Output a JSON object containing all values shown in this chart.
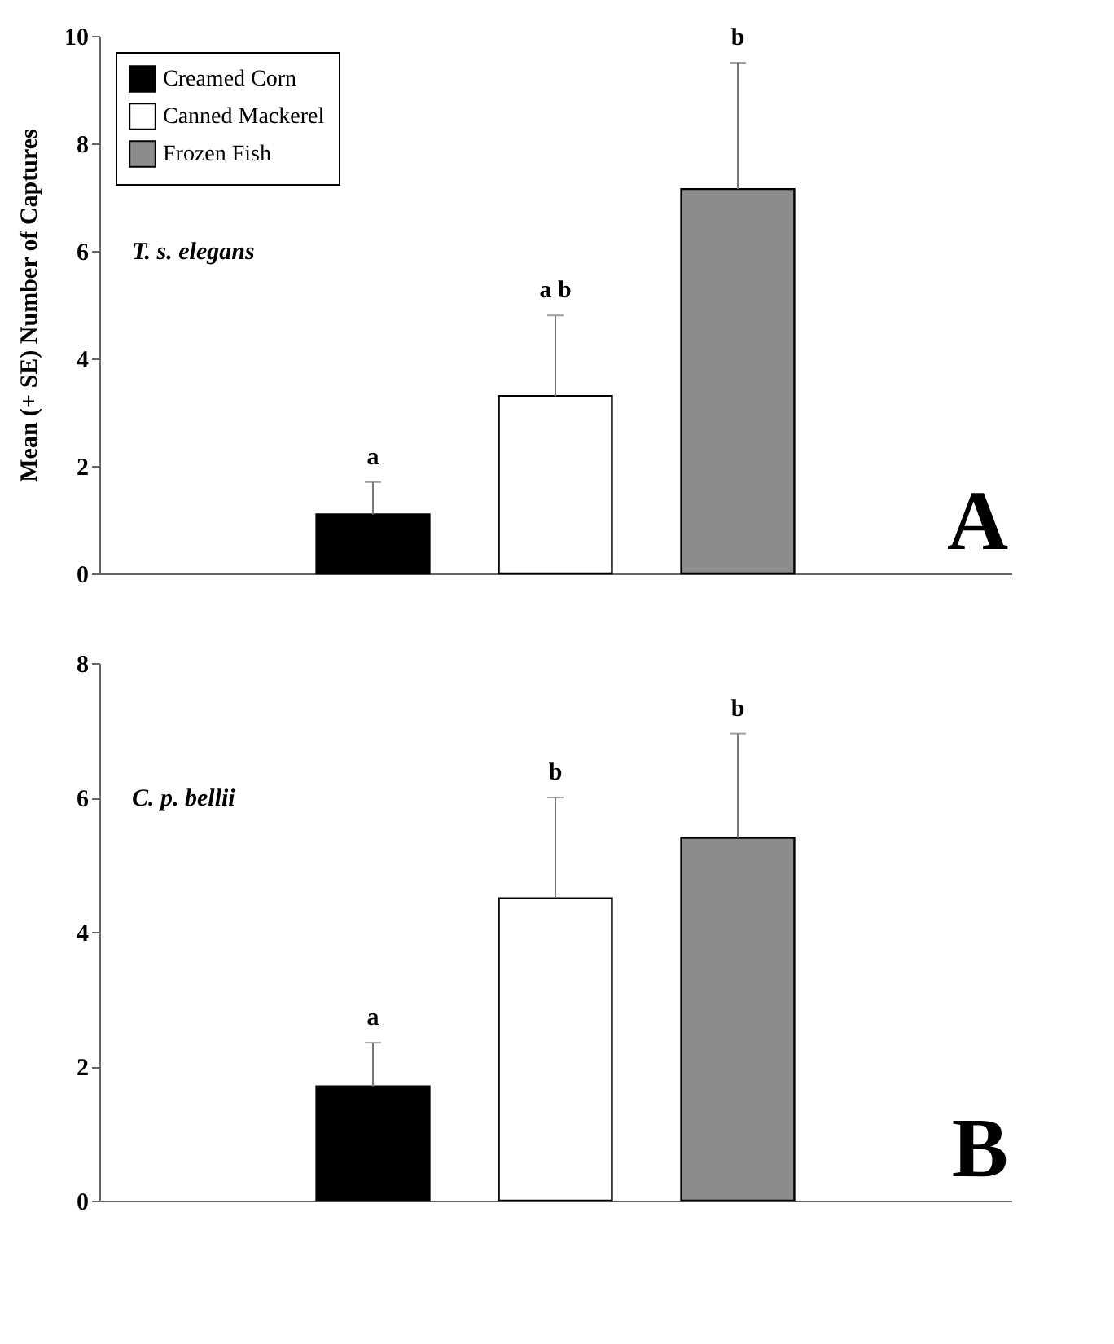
{
  "chart_data": [
    {
      "type": "bar",
      "ylabel": "Mean (+ SE) Number of Captures",
      "categories": [
        null,
        null,
        null,
        null,
        null
      ],
      "series": [
        {
          "name": "Creamed Corn",
          "color": "#000000",
          "values": [
            null,
            1.1,
            null,
            null,
            null
          ],
          "errors": [
            null,
            [
              1.1,
              1.7
            ],
            null,
            null,
            null
          ]
        },
        {
          "name": "Canned Mackerel",
          "color": "#ffffff",
          "values": [
            null,
            null,
            3.3,
            null,
            null
          ],
          "errors": [
            null,
            null,
            [
              3.3,
              4.8
            ],
            null,
            null
          ]
        },
        {
          "name": "Frozen Fish",
          "color": "#8c8c8c",
          "values": [
            null,
            null,
            null,
            7.15,
            null
          ],
          "errors": [
            null,
            null,
            null,
            [
              7.15,
              9.5
            ],
            null
          ]
        }
      ],
      "ylim": [
        0,
        10
      ],
      "yticks": [
        0,
        2,
        4,
        6,
        8,
        10
      ],
      "grid": false,
      "legend": "top left",
      "tick_labels": "y",
      "annotations": [
        "T. s. elegans",
        "A",
        {
          "text": "a",
          "y": 1.7
        },
        {
          "text": "a b",
          "y": 4.8
        },
        {
          "text": "b",
          "y": 9.5
        }
      ]
    },
    {
      "type": "bar",
      "categories": [
        null,
        null,
        null,
        null,
        null
      ],
      "series": [
        {
          "color": "#000000",
          "values": [
            null,
            1.7,
            null,
            null,
            null
          ],
          "errors": [
            null,
            [
              1.7,
              2.35
            ],
            null,
            null,
            null
          ]
        },
        {
          "color": "#ffffff",
          "values": [
            null,
            null,
            4.5,
            null,
            null
          ],
          "errors": [
            null,
            null,
            [
              4.5,
              6.0
            ],
            null,
            null
          ]
        },
        {
          "color": "#8c8c8c",
          "values": [
            null,
            null,
            null,
            5.4,
            null
          ],
          "errors": [
            null,
            null,
            null,
            [
              5.4,
              6.95
            ],
            null
          ]
        }
      ],
      "ylim": [
        0,
        8
      ],
      "yticks": [
        0,
        2,
        4,
        6,
        8
      ],
      "grid": false,
      "legend": false,
      "tick_labels": "y",
      "annotations": [
        "C. p. bellii",
        "B",
        {
          "text": "a",
          "y": 2.35
        },
        {
          "text": "b",
          "y": 6.0
        },
        {
          "text": "b",
          "y": 6.95
        }
      ]
    }
  ]
}
